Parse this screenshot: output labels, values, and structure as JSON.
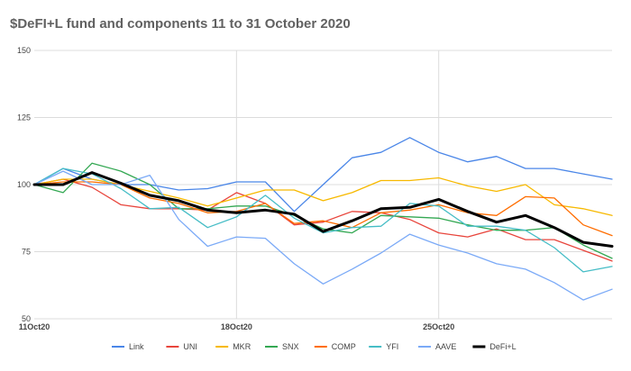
{
  "chart_data": {
    "type": "line",
    "title": "$DeFI+L fund and components 11 to 31 October 2020",
    "xlabel": "",
    "ylabel": "",
    "x": [
      "11Oct20",
      "12Oct20",
      "13Oct20",
      "14Oct20",
      "15Oct20",
      "16Oct20",
      "17Oct20",
      "18Oct20",
      "19Oct20",
      "20Oct20",
      "21Oct20",
      "22Oct20",
      "23Oct20",
      "24Oct20",
      "25Oct20",
      "26Oct20",
      "27Oct20",
      "28Oct20",
      "29Oct20",
      "30Oct20",
      "31Oct20"
    ],
    "x_tick_labels": [
      {
        "index": 0,
        "label": "11Oct20"
      },
      {
        "index": 7,
        "label": "18Oct20"
      },
      {
        "index": 14,
        "label": "25Oct20"
      }
    ],
    "ylim": [
      50,
      150
    ],
    "y_ticks": [
      50,
      75,
      100,
      125,
      150
    ],
    "grid": true,
    "legend_position": "bottom",
    "series": [
      {
        "name": "Link",
        "color": "#4a86e8",
        "width": 1.3,
        "values": [
          100,
          106,
          102,
          100,
          100,
          98,
          98.5,
          101,
          101,
          90,
          100,
          110,
          112,
          117.5,
          112,
          108.5,
          110.5,
          106,
          106,
          104,
          102
        ]
      },
      {
        "name": "UNI",
        "color": "#e8453c",
        "width": 1.3,
        "values": [
          100,
          102,
          99,
          92.5,
          91,
          91,
          90.5,
          97,
          93,
          85,
          86,
          90,
          89.5,
          87,
          82,
          80.5,
          83.5,
          79.5,
          79.5,
          75.5,
          71.5
        ]
      },
      {
        "name": "MKR",
        "color": "#f7b900",
        "width": 1.3,
        "values": [
          100,
          102,
          102,
          100,
          97.5,
          95,
          92,
          95,
          98,
          98,
          94,
          97,
          101.5,
          101.5,
          102.5,
          99.5,
          97.5,
          100,
          92.5,
          91,
          88.5
        ]
      },
      {
        "name": "SNX",
        "color": "#34a853",
        "width": 1.3,
        "values": [
          100,
          97,
          108,
          105,
          100,
          91,
          91,
          92,
          92,
          88.5,
          83.5,
          82,
          88.5,
          88,
          87.5,
          85,
          83,
          83,
          84,
          77.5,
          72.5
        ]
      },
      {
        "name": "COMP",
        "color": "#ff6d01",
        "width": 1.3,
        "values": [
          100,
          101,
          101,
          100,
          95,
          93,
          89.5,
          90,
          93,
          85.5,
          86.5,
          84,
          89.5,
          90.5,
          92.5,
          89.5,
          88.5,
          95.5,
          95,
          85,
          81
        ]
      },
      {
        "name": "YFI",
        "color": "#46bdc6",
        "width": 1.3,
        "values": [
          100,
          106,
          104,
          98.5,
          91,
          91.5,
          84,
          88,
          96,
          87.5,
          82,
          84,
          84.5,
          93,
          92,
          84.5,
          84.5,
          83,
          76.5,
          67.5,
          69.5
        ]
      },
      {
        "name": "AAVE",
        "color": "#7baaf7",
        "width": 1.3,
        "values": [
          100,
          105,
          100,
          100,
          103.5,
          87,
          77,
          80.5,
          80,
          70.5,
          63,
          68.5,
          74.5,
          81.5,
          77.5,
          74.5,
          70.5,
          68.5,
          63.5,
          57,
          61
        ]
      },
      {
        "name": "DeFi+L",
        "color": "#000000",
        "width": 3,
        "values": [
          100,
          100,
          104.5,
          100.5,
          96,
          94,
          90.5,
          89.5,
          90.5,
          89,
          82.5,
          86.5,
          91,
          91.5,
          94.5,
          90,
          86,
          88.5,
          84,
          78.5,
          77
        ]
      }
    ]
  },
  "colors": {
    "grid": "#dcdcdc",
    "title": "#616161",
    "labels": "#444444"
  }
}
